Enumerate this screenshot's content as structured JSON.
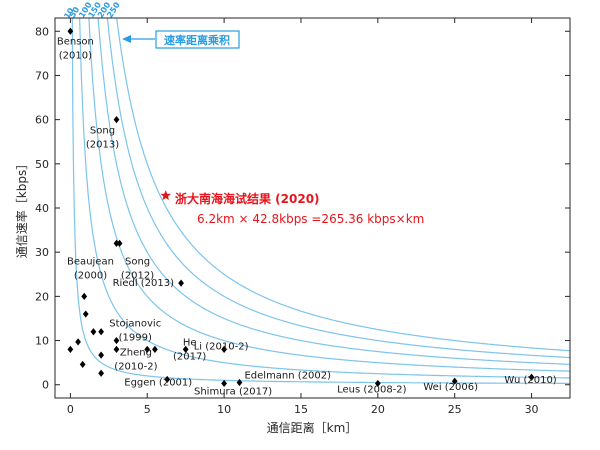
{
  "chart_data": {
    "type": "scatter",
    "title": "",
    "xlabel": "通信距离［km］",
    "ylabel": "通信速率［kbps］",
    "xlim": [
      -1,
      32.5
    ],
    "ylim": [
      -3,
      83
    ],
    "xticks": [
      0,
      5,
      10,
      15,
      20,
      25,
      30
    ],
    "yticks": [
      0,
      10,
      20,
      30,
      40,
      50,
      60,
      70,
      80
    ],
    "curve_legend": "速率距离乘积",
    "curve_color": "#7cc4ec",
    "marker_color": "#000000",
    "highlight_color": "#e8141b",
    "curves": [
      {
        "product": 10,
        "label": "10"
      },
      {
        "product": 50,
        "label": "50"
      },
      {
        "product": 100,
        "label": "100"
      },
      {
        "product": 150,
        "label": "150"
      },
      {
        "product": 200,
        "label": "200"
      },
      {
        "product": 250,
        "label": "250"
      }
    ],
    "points": [
      {
        "x": 0,
        "y": 80,
        "label": "Benson\n(2010)"
      },
      {
        "x": 3,
        "y": 60,
        "label": "Song\n(2013)"
      },
      {
        "x": 3,
        "y": 32,
        "label": "Beaujean\n(2000)"
      },
      {
        "x": 3.2,
        "y": 32,
        "label": "Song\n(2012)"
      },
      {
        "x": 7.2,
        "y": 23,
        "label": "Riedl (2013)"
      },
      {
        "x": 5,
        "y": 8,
        "label": "Stojanovic\n(1999)"
      },
      {
        "x": 5.5,
        "y": 8,
        "label": "Zheng\n(2010-2)"
      },
      {
        "x": 7.5,
        "y": 8,
        "label": "He\n(2017)"
      },
      {
        "x": 10,
        "y": 8,
        "label": "Li (2010-2)"
      },
      {
        "x": 6.3,
        "y": 1.2,
        "label": "Eggen (2001)"
      },
      {
        "x": 10,
        "y": 0.3,
        "label": "Shimura (2017)"
      },
      {
        "x": 11,
        "y": 0.5,
        "label": "Edelmann (2002)"
      },
      {
        "x": 20,
        "y": 0.3,
        "label": "Leus (2008-2)"
      },
      {
        "x": 25,
        "y": 0.8,
        "label": "Wei (2006)"
      },
      {
        "x": 30,
        "y": 1.7,
        "label": "Wu (2010)"
      },
      {
        "x": 0,
        "y": 8,
        "label": ""
      },
      {
        "x": 0.5,
        "y": 9.7,
        "label": ""
      },
      {
        "x": 0.8,
        "y": 4.6,
        "label": ""
      },
      {
        "x": 0.9,
        "y": 20,
        "label": ""
      },
      {
        "x": 1,
        "y": 16,
        "label": ""
      },
      {
        "x": 1.5,
        "y": 12,
        "label": ""
      },
      {
        "x": 2,
        "y": 12,
        "label": ""
      },
      {
        "x": 2,
        "y": 6.7,
        "label": ""
      },
      {
        "x": 2,
        "y": 2.6,
        "label": ""
      },
      {
        "x": 3,
        "y": 10,
        "label": ""
      },
      {
        "x": 3,
        "y": 8,
        "label": ""
      }
    ],
    "highlight": {
      "x": 6.2,
      "y": 42.8,
      "title": "浙大南海海试结果 (2020)",
      "note": "6.2km × 42.8kbps =265.36 kbps×km"
    }
  }
}
